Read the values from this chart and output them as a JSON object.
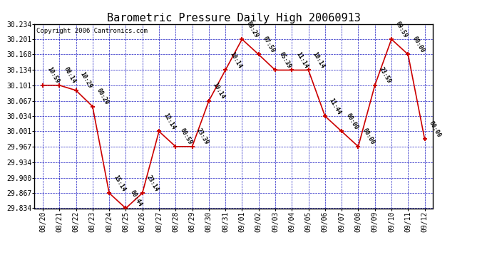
{
  "title": "Barometric Pressure Daily High 20060913",
  "copyright": "Copyright 2006 Cantronics.com",
  "x_labels": [
    "08/20",
    "08/21",
    "08/22",
    "08/23",
    "08/24",
    "08/25",
    "08/26",
    "08/27",
    "08/28",
    "08/29",
    "08/30",
    "08/31",
    "09/01",
    "09/02",
    "09/03",
    "09/04",
    "09/05",
    "09/06",
    "09/07",
    "09/08",
    "09/09",
    "09/10",
    "09/11",
    "09/12"
  ],
  "y_values": [
    30.101,
    30.101,
    30.09,
    30.055,
    29.867,
    29.834,
    29.867,
    30.001,
    29.968,
    29.968,
    30.067,
    30.134,
    30.201,
    30.168,
    30.134,
    30.134,
    30.134,
    30.034,
    30.001,
    29.968,
    30.101,
    30.201,
    30.168,
    29.984
  ],
  "point_labels": [
    "10:59",
    "08:14",
    "10:29",
    "00:29",
    "15:14",
    "00:44",
    "23:14",
    "12:14",
    "00:59",
    "23:39",
    "10:14",
    "10:14",
    "08:29",
    "07:50",
    "05:39",
    "11:14",
    "10:14",
    "11:44",
    "00:00",
    "00:00",
    "23:59",
    "09:59",
    "00:00",
    "00:00"
  ],
  "ylim_min": 29.834,
  "ylim_max": 30.234,
  "yticks": [
    29.834,
    29.867,
    29.9,
    29.934,
    29.967,
    30.001,
    30.034,
    30.067,
    30.101,
    30.134,
    30.168,
    30.201,
    30.234
  ],
  "line_color": "#cc0000",
  "marker_color": "#cc0000",
  "bg_color": "#ffffff",
  "grid_color": "#0000bb",
  "text_color": "#000000",
  "title_font_size": 11,
  "label_font_size": 6,
  "tick_font_size": 7,
  "copyright_font_size": 6.5
}
